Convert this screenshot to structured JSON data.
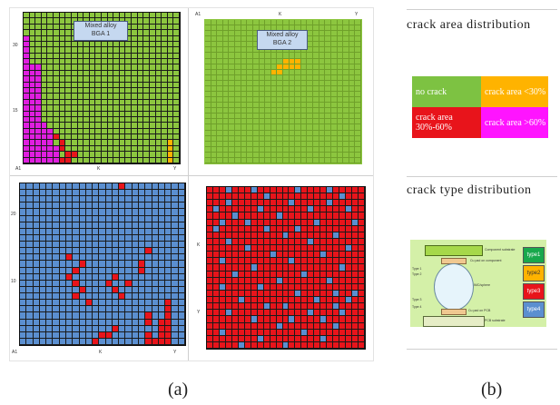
{
  "panel_a": {
    "bga1": {
      "title_line1": "Mixed alloy",
      "title_line2": "BGA 1",
      "axis_left": [
        "30",
        "15"
      ],
      "axis_bottom": [
        "A1",
        "K",
        "Y"
      ]
    },
    "bga2": {
      "title_line1": "Mixed alloy",
      "title_line2": "BGA 2",
      "axis_top": [
        "A1",
        "K",
        "Y"
      ]
    },
    "bottom_left": {
      "axis_left": [
        "20",
        "10"
      ],
      "axis_bottom": [
        "A1",
        "K",
        "Y"
      ]
    },
    "bottom_right": {
      "axis_left": [
        "K",
        "Y"
      ]
    },
    "caption": "(a)"
  },
  "panel_b": {
    "crack_area_heading": "crack  area  distribution",
    "area_legend": [
      {
        "label": "no crack",
        "color": "#7dc242"
      },
      {
        "label": "crack area <30%",
        "color": "#ffb300"
      },
      {
        "label": "crack area 30%-60%",
        "color": "#e8141b"
      },
      {
        "label": "crack area >60%",
        "color": "#ff14ff"
      }
    ],
    "crack_type_heading": "crack  type  distribution",
    "diagram_labels": {
      "component": "Component substrate",
      "cu_comp": "Cu pad on component",
      "imc": "IMC/sphere",
      "cu_pcb": "Cu pad on PCB",
      "pcb": "PCB substrate",
      "type_left": [
        "Type 1",
        "Type 2",
        "Type 3",
        "Type 4"
      ]
    },
    "type_legend": [
      {
        "label": "type1",
        "color": "#18a84c"
      },
      {
        "label": "type2",
        "color": "#ffb300"
      },
      {
        "label": "type3",
        "color": "#e8141b"
      },
      {
        "label": "type4",
        "color": "#5b8fd0"
      }
    ],
    "caption": "(b)"
  },
  "colors": {
    "green": "#8cc63f",
    "blue": "#5b8fd0",
    "red": "#e8141b",
    "magenta": "#e01ee0",
    "orange": "#ffb300"
  }
}
